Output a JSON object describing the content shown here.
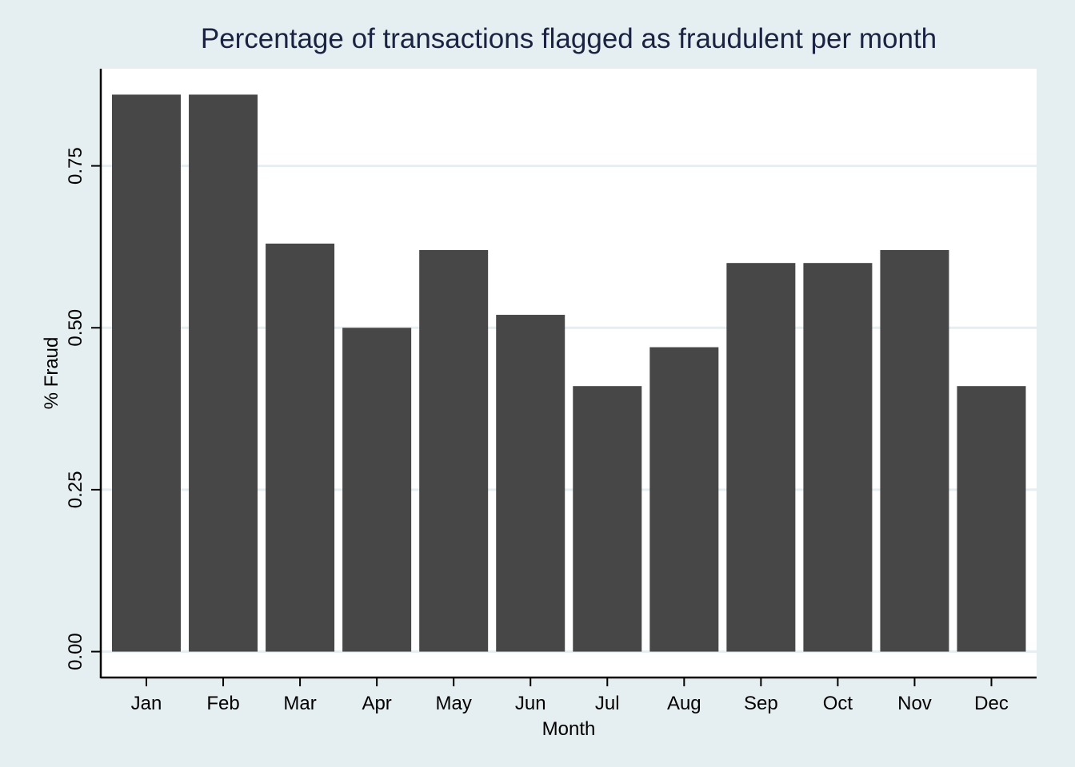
{
  "chart_data": {
    "type": "bar",
    "title": "Percentage of transactions flagged as fraudulent per month",
    "xlabel": "Month",
    "ylabel": "% Fraud",
    "categories": [
      "Jan",
      "Feb",
      "Mar",
      "Apr",
      "May",
      "Jun",
      "Jul",
      "Aug",
      "Sep",
      "Oct",
      "Nov",
      "Dec"
    ],
    "values": [
      0.86,
      0.86,
      0.63,
      0.5,
      0.62,
      0.52,
      0.41,
      0.47,
      0.6,
      0.6,
      0.62,
      0.41
    ],
    "ylim": [
      -0.04,
      0.9
    ],
    "yticks": [
      0,
      0.25,
      0.5,
      0.75
    ],
    "ytick_labels": [
      "0.00",
      "0.25",
      "0.50",
      "0.75"
    ],
    "grid": true,
    "legend": "none",
    "colors": {
      "background": "#e5eef0",
      "plot_background": "#ffffff",
      "bar": "#474747",
      "grid": "#e5eef0",
      "axis": "#000000",
      "title": "#1a2342"
    }
  }
}
